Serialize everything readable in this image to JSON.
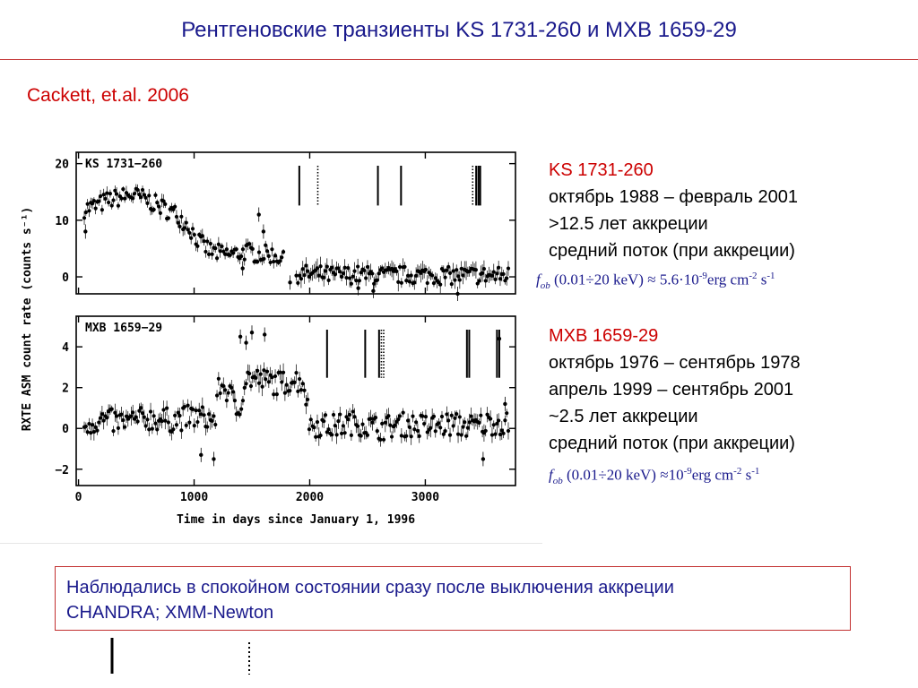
{
  "title": "Рентгеновские транзиенты KS 1731-260 и MXB 1659-29",
  "citation": "Cackett, et.al. 2006",
  "chart_data": {
    "type": "scatter",
    "xlabel": "Time in days since January 1, 1996",
    "ylabel": "RXTE ASM count rate (counts s⁻¹)",
    "xlim": [
      -20,
      3780
    ],
    "x_ticks": [
      0,
      1000,
      2000,
      3000
    ],
    "panels": [
      {
        "name": "KS 1731−260",
        "ylim": [
          -3,
          22
        ],
        "y_ticks": [
          0,
          10,
          20
        ],
        "observations_solid": [
          1910,
          2590,
          2790,
          3440,
          3460,
          3475
        ],
        "observations_dotted": [
          2070,
          3410
        ],
        "trend": [
          {
            "x": 50,
            "y": 12
          },
          {
            "x": 150,
            "y": 12.5
          },
          {
            "x": 250,
            "y": 13.5
          },
          {
            "x": 350,
            "y": 14
          },
          {
            "x": 450,
            "y": 14.5
          },
          {
            "x": 550,
            "y": 14
          },
          {
            "x": 650,
            "y": 13
          },
          {
            "x": 750,
            "y": 12
          },
          {
            "x": 850,
            "y": 11
          },
          {
            "x": 950,
            "y": 9
          },
          {
            "x": 1050,
            "y": 6
          },
          {
            "x": 1150,
            "y": 4.5
          },
          {
            "x": 1250,
            "y": 4
          },
          {
            "x": 1350,
            "y": 4
          },
          {
            "x": 1450,
            "y": 4.5
          },
          {
            "x": 1550,
            "y": 4
          },
          {
            "x": 1650,
            "y": 4
          },
          {
            "x": 1750,
            "y": 3.5
          },
          {
            "x": 1850,
            "y": 0.5
          },
          {
            "x": 2000,
            "y": 0.5
          },
          {
            "x": 2200,
            "y": 0.3
          },
          {
            "x": 2400,
            "y": 0.4
          },
          {
            "x": 2600,
            "y": 0.2
          },
          {
            "x": 2800,
            "y": 0.3
          },
          {
            "x": 3000,
            "y": 0.3
          },
          {
            "x": 3200,
            "y": 0.2
          },
          {
            "x": 3400,
            "y": 0.3
          },
          {
            "x": 3600,
            "y": 0.2
          },
          {
            "x": 3720,
            "y": 0.3
          }
        ],
        "outliers": [
          {
            "x": 60,
            "y": 8
          },
          {
            "x": 1560,
            "y": 11
          },
          {
            "x": 1600,
            "y": 8
          },
          {
            "x": 1420,
            "y": 1.5
          },
          {
            "x": 2420,
            "y": -2
          },
          {
            "x": 2550,
            "y": -2.5
          },
          {
            "x": 3280,
            "y": -3
          },
          {
            "x": 1830,
            "y": -1
          }
        ]
      },
      {
        "name": "MXB 1659−29",
        "ylim": [
          -2.8,
          5.5
        ],
        "y_ticks": [
          -2,
          0,
          2,
          4
        ],
        "observations_solid": [
          2150,
          2480,
          2600,
          3360,
          3380,
          3620,
          3640
        ],
        "observations_dotted": [
          2620,
          2640
        ],
        "trend": [
          {
            "x": 50,
            "y": 0.2
          },
          {
            "x": 200,
            "y": 0.4
          },
          {
            "x": 400,
            "y": 0.3
          },
          {
            "x": 600,
            "y": 0.5
          },
          {
            "x": 800,
            "y": 0.4
          },
          {
            "x": 1000,
            "y": 0.6
          },
          {
            "x": 1100,
            "y": 0.5
          },
          {
            "x": 1180,
            "y": 0.4
          },
          {
            "x": 1220,
            "y": 2.2
          },
          {
            "x": 1300,
            "y": 1.8
          },
          {
            "x": 1380,
            "y": 0.8
          },
          {
            "x": 1450,
            "y": 2.5
          },
          {
            "x": 1550,
            "y": 2.4
          },
          {
            "x": 1650,
            "y": 2.3
          },
          {
            "x": 1750,
            "y": 2.2
          },
          {
            "x": 1850,
            "y": 2.4
          },
          {
            "x": 1950,
            "y": 2.3
          },
          {
            "x": 2000,
            "y": 0.2
          },
          {
            "x": 2200,
            "y": 0.1
          },
          {
            "x": 2400,
            "y": 0.3
          },
          {
            "x": 2600,
            "y": 0.0
          },
          {
            "x": 2800,
            "y": 0.2
          },
          {
            "x": 3000,
            "y": 0.1
          },
          {
            "x": 3200,
            "y": 0.2
          },
          {
            "x": 3400,
            "y": 0.1
          },
          {
            "x": 3600,
            "y": 0.3
          },
          {
            "x": 3720,
            "y": 0.2
          }
        ],
        "outliers": [
          {
            "x": 1400,
            "y": 4.5
          },
          {
            "x": 1450,
            "y": 4.2
          },
          {
            "x": 1500,
            "y": 4.7
          },
          {
            "x": 1610,
            "y": 4.6
          },
          {
            "x": 1060,
            "y": -1.3
          },
          {
            "x": 1170,
            "y": -1.5
          },
          {
            "x": 3640,
            "y": 4.4
          },
          {
            "x": 3690,
            "y": 1.2
          },
          {
            "x": 3500,
            "y": -1.5
          }
        ]
      }
    ]
  },
  "sources": [
    {
      "name": "KS 1731-260",
      "lines": [
        "октябрь 1988 – февраль 2001",
        ">12.5 лет аккреции",
        "средний поток (при аккреции)"
      ],
      "formula": {
        "f": "f",
        "sub": "ob",
        "range": "(0.01÷20 keV)",
        "approx": "≈",
        "value": "5.6·10",
        "exp": "-9",
        "unit": "erg cm",
        "unit_exp": "-2",
        "unit2": "s",
        "unit2_exp": "-1"
      }
    },
    {
      "name": "MXB 1659-29",
      "lines": [
        "октябрь 1976 – сентябрь 1978",
        "апрель  1999 – сентябрь 2001",
        "~2.5 лет аккреции",
        "средний поток (при аккреции)"
      ],
      "formula": {
        "f": "f",
        "sub": "ob",
        "range": "(0.01÷20 keV)",
        "approx": "≈",
        "value": "10",
        "exp": "-9",
        "unit": "erg cm",
        "unit_exp": "-2",
        "unit2": "s",
        "unit2_exp": "-1"
      }
    }
  ],
  "note": {
    "line1": "Наблюдались в спокойном состоянии сразу после выключения аккреции",
    "line2": "CHANDRA; XMM-Newton"
  }
}
